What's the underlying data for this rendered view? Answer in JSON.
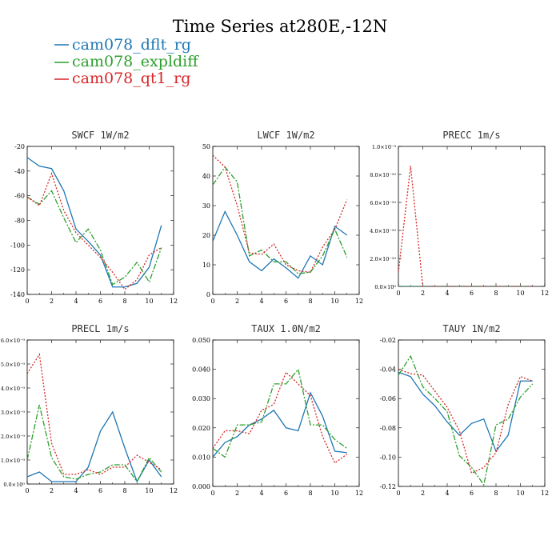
{
  "title": "Time Series at280E,-12N",
  "legend": [
    {
      "name": "cam078_dflt_rg",
      "color": "#1f77b4",
      "dash": "solid"
    },
    {
      "name": "cam078_expldiff",
      "color": "#2ca02c",
      "dash": "dashdot"
    },
    {
      "name": "cam078_qt1_rg",
      "color": "#d62728",
      "dash": "dotted"
    }
  ],
  "chart_data": [
    {
      "type": "line",
      "title": "SWCF   1W/m2",
      "x": [
        0,
        1,
        2,
        3,
        4,
        5,
        6,
        7,
        8,
        9,
        10,
        11
      ],
      "xlim": [
        0,
        12
      ],
      "xticks": [
        0,
        2,
        4,
        6,
        8,
        10,
        12
      ],
      "ylim": [
        -140,
        -20
      ],
      "yticks": [
        -140,
        -120,
        -100,
        -80,
        -60,
        -40,
        -20
      ],
      "ytick_labels": [
        "-140",
        "-120",
        "-100",
        "-80",
        "-60",
        "-40",
        "-20"
      ],
      "series": [
        {
          "name": "cam078_dflt_rg",
          "values": [
            -29,
            -36,
            -38,
            -56,
            -87,
            -97,
            -108,
            -134,
            -134,
            -131,
            -118,
            -84
          ]
        },
        {
          "name": "cam078_expldiff",
          "values": [
            -61,
            -67,
            -56,
            -78,
            -98,
            -87,
            -104,
            -132,
            -126,
            -114,
            -130,
            -102
          ]
        },
        {
          "name": "cam078_qt1_rg",
          "values": [
            -61,
            -68,
            -42,
            -72,
            -90,
            -100,
            -110,
            -122,
            -136,
            -128,
            -108,
            -102
          ]
        }
      ]
    },
    {
      "type": "line",
      "title": "LWCF   1W/m2",
      "x": [
        0,
        1,
        2,
        3,
        4,
        5,
        6,
        7,
        8,
        9,
        10,
        11
      ],
      "xlim": [
        0,
        12
      ],
      "xticks": [
        0,
        2,
        4,
        6,
        8,
        10,
        12
      ],
      "ylim": [
        0,
        50
      ],
      "yticks": [
        0,
        10,
        20,
        30,
        40,
        50
      ],
      "ytick_labels": [
        "0",
        "10",
        "20",
        "30",
        "40",
        "50"
      ],
      "series": [
        {
          "name": "cam078_dflt_rg",
          "values": [
            18,
            28,
            20,
            11,
            8,
            12,
            9,
            5.5,
            13,
            10,
            23,
            20
          ]
        },
        {
          "name": "cam078_expldiff",
          "values": [
            37,
            43,
            38,
            13,
            15,
            11,
            11,
            7,
            7.5,
            13,
            22,
            12.5
          ]
        },
        {
          "name": "cam078_qt1_rg",
          "values": [
            47,
            43,
            30,
            14,
            13.5,
            17,
            10,
            8,
            7.5,
            16,
            22,
            32
          ]
        }
      ]
    },
    {
      "type": "line",
      "title": "PRECC   1m/s",
      "x": [
        0,
        1,
        2,
        3,
        4,
        5,
        6,
        7,
        8,
        9,
        10,
        11
      ],
      "xlim": [
        0,
        12
      ],
      "xticks": [
        0,
        2,
        4,
        6,
        8,
        10,
        12
      ],
      "ylim": [
        0,
        1e-09
      ],
      "yticks": [
        0,
        2e-10,
        4e-10,
        6e-10,
        8e-10,
        1e-09
      ],
      "ytick_labels": [
        "0.0×10⁰",
        "2.0×10⁻¹⁰",
        "4.0×10⁻¹⁰",
        "6.0×10⁻¹⁰",
        "8.0×10⁻¹⁰",
        "1.0×10⁻⁹"
      ],
      "series": [
        {
          "name": "cam078_dflt_rg",
          "values": [
            0,
            0,
            0,
            0,
            0,
            0,
            0,
            0,
            0,
            0,
            0,
            0
          ]
        },
        {
          "name": "cam078_expldiff",
          "values": [
            0,
            0,
            0,
            0,
            0,
            0,
            0,
            0,
            0,
            0,
            0,
            0
          ]
        },
        {
          "name": "cam078_qt1_rg",
          "values": [
            1e-10,
            8.6e-10,
            0,
            0,
            0,
            0,
            0,
            0,
            0,
            0,
            0,
            0
          ]
        }
      ]
    },
    {
      "type": "line",
      "title": "PRECL   1m/s",
      "x": [
        0,
        1,
        2,
        3,
        4,
        5,
        6,
        7,
        8,
        9,
        10,
        11
      ],
      "xlim": [
        0,
        12
      ],
      "xticks": [
        0,
        2,
        4,
        6,
        8,
        10,
        12
      ],
      "ylim": [
        0,
        6e-09
      ],
      "yticks": [
        0,
        1e-09,
        2e-09,
        3e-09,
        4e-09,
        5e-09,
        6e-09
      ],
      "ytick_labels": [
        "0.0×10⁰",
        "1.0×10⁻⁹",
        "2.0×10⁻⁹",
        "3.0×10⁻⁹",
        "4.0×10⁻⁹",
        "5.0×10⁻⁹",
        "6.0×10⁻⁹"
      ],
      "series": [
        {
          "name": "cam078_dflt_rg",
          "values": [
            3e-10,
            5e-10,
            1e-10,
            1e-10,
            1e-10,
            7e-10,
            2.2e-09,
            3e-09,
            1.5e-09,
            1e-10,
            1e-09,
            3e-10
          ]
        },
        {
          "name": "cam078_expldiff",
          "values": [
            1e-09,
            3.3e-09,
            1.1e-09,
            3e-10,
            2e-10,
            4e-10,
            5e-10,
            8e-10,
            8e-10,
            1e-10,
            1.1e-09,
            5e-10
          ]
        },
        {
          "name": "cam078_qt1_rg",
          "values": [
            4.6e-09,
            5.4e-09,
            1.7e-09,
            4e-10,
            4e-10,
            6e-10,
            4e-10,
            7e-10,
            7e-10,
            1.2e-09,
            9e-10,
            6e-10
          ]
        }
      ]
    },
    {
      "type": "line",
      "title": "TAUX   1.0N/m2",
      "x": [
        0,
        1,
        2,
        3,
        4,
        5,
        6,
        7,
        8,
        9,
        10,
        11
      ],
      "xlim": [
        0,
        12
      ],
      "xticks": [
        0,
        2,
        4,
        6,
        8,
        10,
        12
      ],
      "ylim": [
        0,
        0.05
      ],
      "yticks": [
        0,
        0.01,
        0.02,
        0.03,
        0.04,
        0.05
      ],
      "ytick_labels": [
        "0.000",
        "0.010",
        "0.020",
        "0.030",
        "0.040",
        "0.050"
      ],
      "series": [
        {
          "name": "cam078_dflt_rg",
          "values": [
            0.01,
            0.015,
            0.017,
            0.021,
            0.023,
            0.026,
            0.02,
            0.019,
            0.032,
            0.024,
            0.012,
            0.0115
          ]
        },
        {
          "name": "cam078_expldiff",
          "values": [
            0.013,
            0.01,
            0.021,
            0.021,
            0.022,
            0.035,
            0.035,
            0.04,
            0.021,
            0.021,
            0.016,
            0.013
          ]
        },
        {
          "name": "cam078_qt1_rg",
          "values": [
            0.013,
            0.019,
            0.019,
            0.018,
            0.026,
            0.028,
            0.039,
            0.035,
            0.031,
            0.017,
            0.008,
            0.011
          ]
        }
      ]
    },
    {
      "type": "line",
      "title": "TAUY   1N/m2",
      "x": [
        0,
        1,
        2,
        3,
        4,
        5,
        6,
        7,
        8,
        9,
        10,
        11
      ],
      "xlim": [
        0,
        12
      ],
      "xticks": [
        0,
        2,
        4,
        6,
        8,
        10,
        12
      ],
      "ylim": [
        -0.12,
        -0.02
      ],
      "yticks": [
        -0.12,
        -0.1,
        -0.08,
        -0.06,
        -0.04,
        -0.02
      ],
      "ytick_labels": [
        "-0.12",
        "-0.10",
        "-0.08",
        "-0.06",
        "-0.04",
        "-0.02"
      ],
      "series": [
        {
          "name": "cam078_dflt_rg",
          "values": [
            -0.042,
            -0.045,
            -0.057,
            -0.065,
            -0.076,
            -0.085,
            -0.077,
            -0.074,
            -0.096,
            -0.085,
            -0.048,
            -0.048
          ]
        },
        {
          "name": "cam078_expldiff",
          "values": [
            -0.044,
            -0.031,
            -0.052,
            -0.06,
            -0.069,
            -0.099,
            -0.107,
            -0.119,
            -0.078,
            -0.074,
            -0.059,
            -0.05
          ]
        },
        {
          "name": "cam078_qt1_rg",
          "values": [
            -0.04,
            -0.043,
            -0.044,
            -0.055,
            -0.066,
            -0.082,
            -0.111,
            -0.107,
            -0.097,
            -0.064,
            -0.045,
            -0.048
          ]
        }
      ]
    }
  ]
}
